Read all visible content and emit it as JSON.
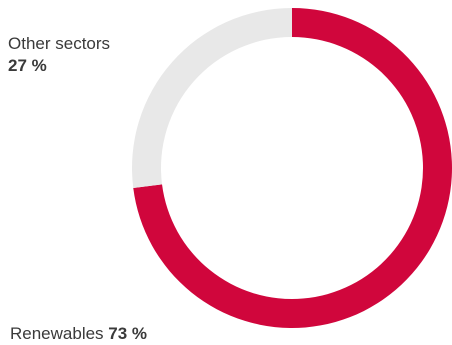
{
  "chart_data": {
    "type": "pie",
    "variant": "donut",
    "slices": [
      {
        "label": "Renewables",
        "value": 73,
        "display": "73 %",
        "color": "#d0063c"
      },
      {
        "label": "Other sectors",
        "value": 27,
        "display": "27 %",
        "color": "#e8e8e8"
      }
    ],
    "legend": "none"
  }
}
